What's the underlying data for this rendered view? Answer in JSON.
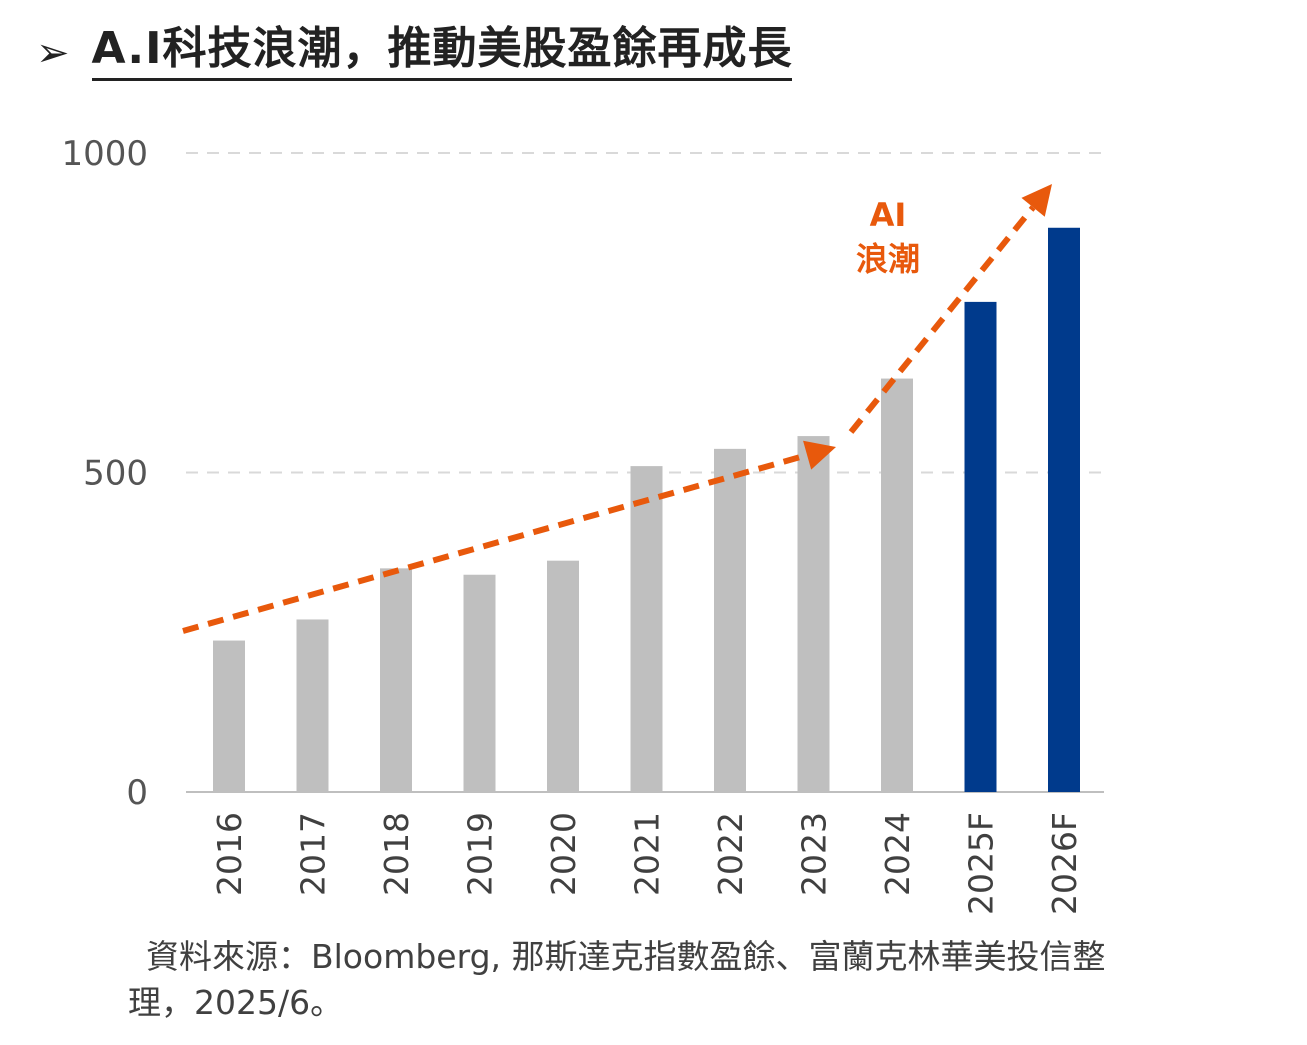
{
  "header": {
    "arrow": "➢",
    "title": "A.I科技浪潮，推動美股盈餘再成長"
  },
  "chart_data": {
    "type": "bar",
    "categories": [
      "2016",
      "2017",
      "2018",
      "2019",
      "2020",
      "2021",
      "2022",
      "2023",
      "2024",
      "2025F",
      "2026F"
    ],
    "values": [
      237,
      270,
      350,
      340,
      362,
      510,
      537,
      557,
      647,
      767,
      883
    ],
    "ylim": [
      0,
      1000
    ],
    "yticks": [
      0,
      500,
      1000
    ],
    "grid": true,
    "colors": {
      "actual": "#bfbfbf",
      "forecast": "#003a8c",
      "arrow": "#e8590c",
      "grid": "#d9d9d9"
    },
    "forecast_categories": [
      "2025F",
      "2026F"
    ],
    "annotation": {
      "line1": "AI",
      "line2": "浪潮"
    }
  },
  "source": {
    "text": "資料來源：Bloomberg, 那斯達克指數盈餘、富蘭克林華美投信整理，2025/6。"
  }
}
